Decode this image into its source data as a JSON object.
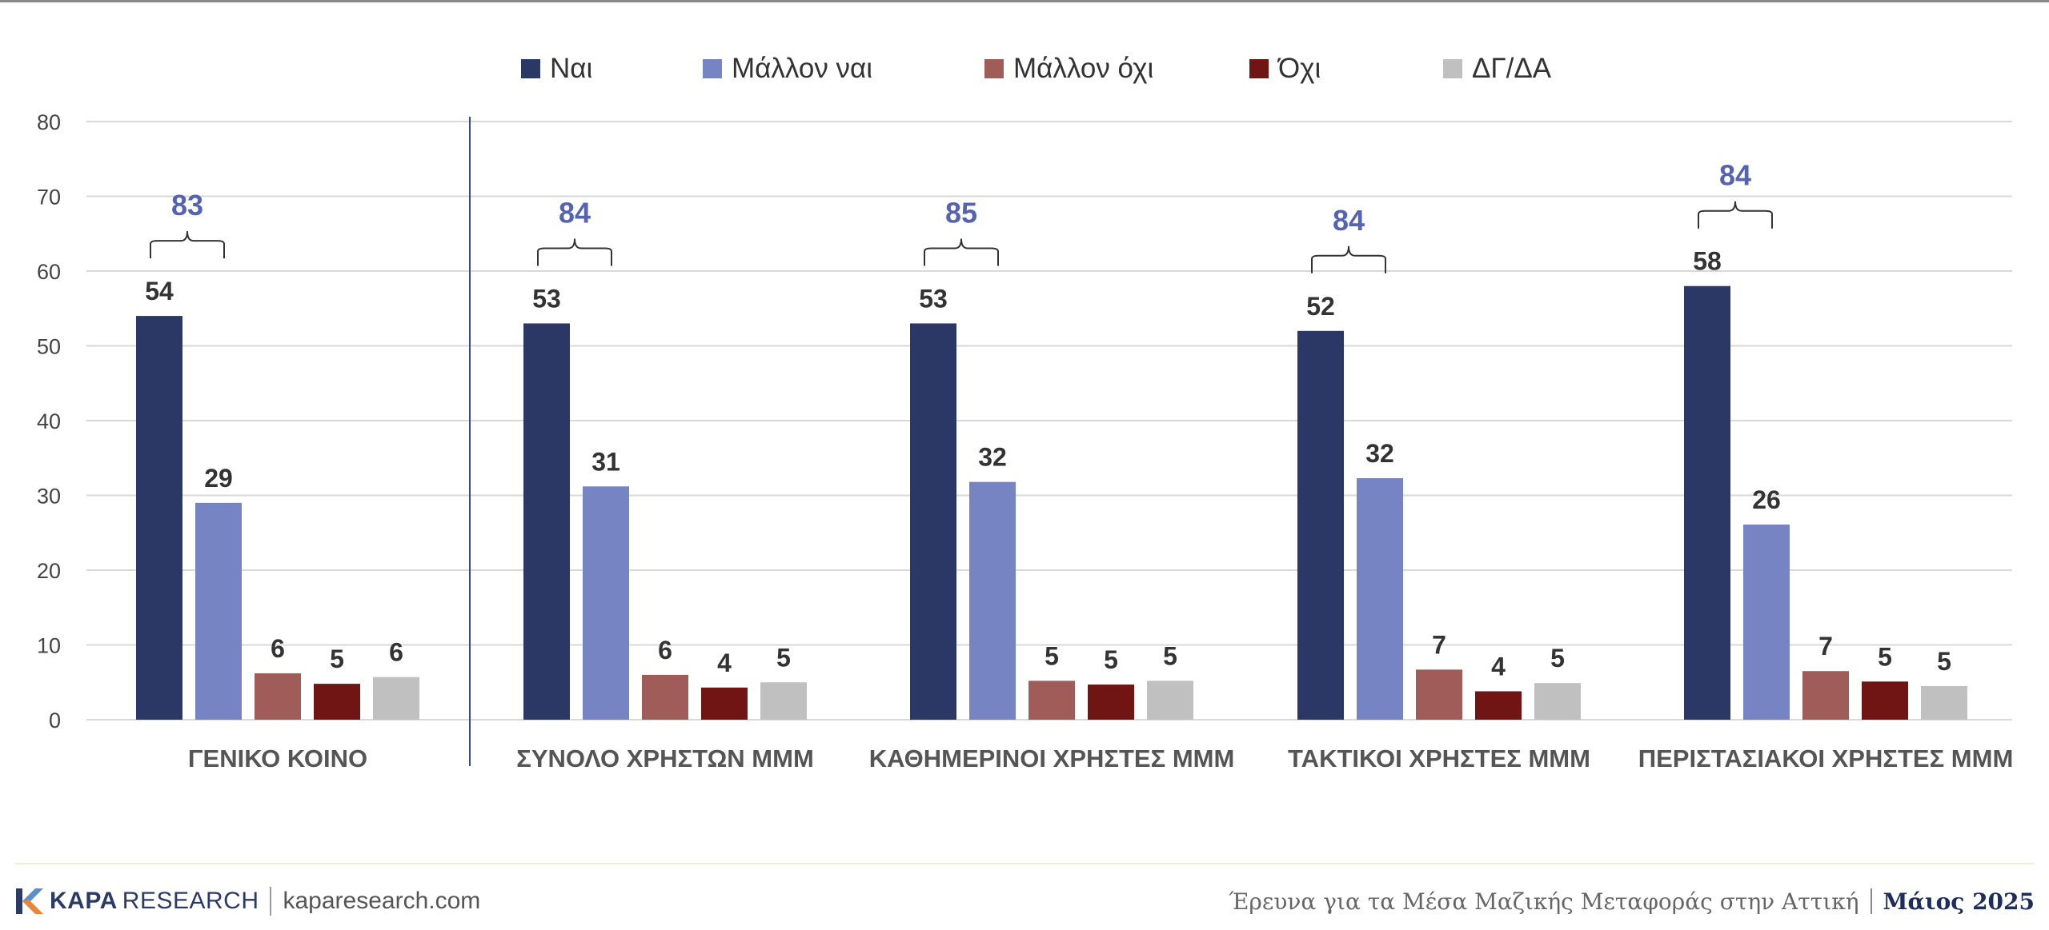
{
  "colors": {
    "series": [
      "#2b3765",
      "#7784c4",
      "#a05c58",
      "#701513",
      "#c0c0c0"
    ],
    "bracket_label": "#5663b1",
    "value_label": "#333333",
    "axis_label": "#444444",
    "grid": "#d9d9d9"
  },
  "chart_data": {
    "type": "bar",
    "categories": [
      "ΓΕΝΙΚΟ ΚΟΙΝΟ",
      "ΣΥΝΟΛΟ ΧΡΗΣΤΩΝ ΜΜΜ",
      "ΚΑΘΗΜΕΡΙΝΟΙ ΧΡΗΣΤΕΣ ΜΜΜ",
      "ΤΑΚΤΙΚΟΙ ΧΡΗΣΤΕΣ ΜΜΜ",
      "ΠΕΡΙΣΤΑΣΙΑΚΟΙ ΧΡΗΣΤΕΣ ΜΜΜ"
    ],
    "series": [
      {
        "name": "Ναι",
        "values": [
          54,
          53,
          53,
          52,
          58
        ],
        "labels": [
          "54",
          "53",
          "53",
          "52",
          "58"
        ]
      },
      {
        "name": "Μάλλον ναι",
        "values": [
          29,
          31.2,
          31.8,
          32.3,
          26.1
        ],
        "labels": [
          "29",
          "31",
          "32",
          "32",
          "26"
        ]
      },
      {
        "name": "Μάλλον όχι",
        "values": [
          6.2,
          6.0,
          5.2,
          6.7,
          6.5
        ],
        "labels": [
          "6",
          "6",
          "5",
          "7",
          "7"
        ]
      },
      {
        "name": "Όχι",
        "values": [
          4.8,
          4.3,
          4.7,
          3.8,
          5.1
        ],
        "labels": [
          "5",
          "4",
          "5",
          "4",
          "5"
        ]
      },
      {
        "name": "ΔΓ/ΔΑ",
        "values": [
          5.7,
          5.0,
          5.2,
          4.9,
          4.5
        ],
        "labels": [
          "6",
          "5",
          "5",
          "5",
          "5"
        ]
      }
    ],
    "totals": [
      "83",
      "84",
      "85",
      "84",
      "84"
    ],
    "yticks": [
      "0",
      "10",
      "20",
      "30",
      "40",
      "50",
      "60",
      "70",
      "80"
    ],
    "ylim": [
      0,
      80
    ],
    "grid": true,
    "legend_position": "top-center"
  },
  "footer": {
    "brand_bold": "KAPA",
    "brand_light": "RESEARCH",
    "website": "kaparesearch.com",
    "survey_title": "Έρευνα για τα Μέσα Μαζικής Μεταφοράς στην Αττική",
    "survey_date": "Μάιος 2025"
  }
}
